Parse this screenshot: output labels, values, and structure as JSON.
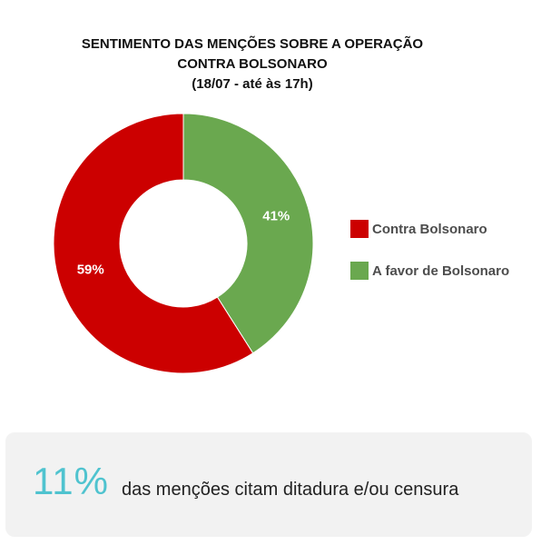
{
  "chart_data": {
    "type": "pie",
    "donut": true,
    "title_lines": [
      "SENTIMENTO DAS MENÇÕES SOBRE A OPERAÇÃO",
      "CONTRA BOLSONARO",
      "(18/07 - até às 17h)"
    ],
    "categories": [
      "A favor de Bolsonaro",
      "Contra Bolsonaro"
    ],
    "values": [
      41,
      59
    ],
    "data_labels": [
      "41%",
      "59%"
    ],
    "colors": [
      "#6aa84f",
      "#cc0000"
    ],
    "legend": {
      "placement": "right",
      "items": [
        {
          "label": "Contra Bolsonaro",
          "color": "#cc0000"
        },
        {
          "label": "A favor de Bolsonaro",
          "color": "#6aa84f"
        }
      ]
    }
  },
  "stat": {
    "value": "11%",
    "text": "das menções citam ditadura e/ou censura"
  }
}
